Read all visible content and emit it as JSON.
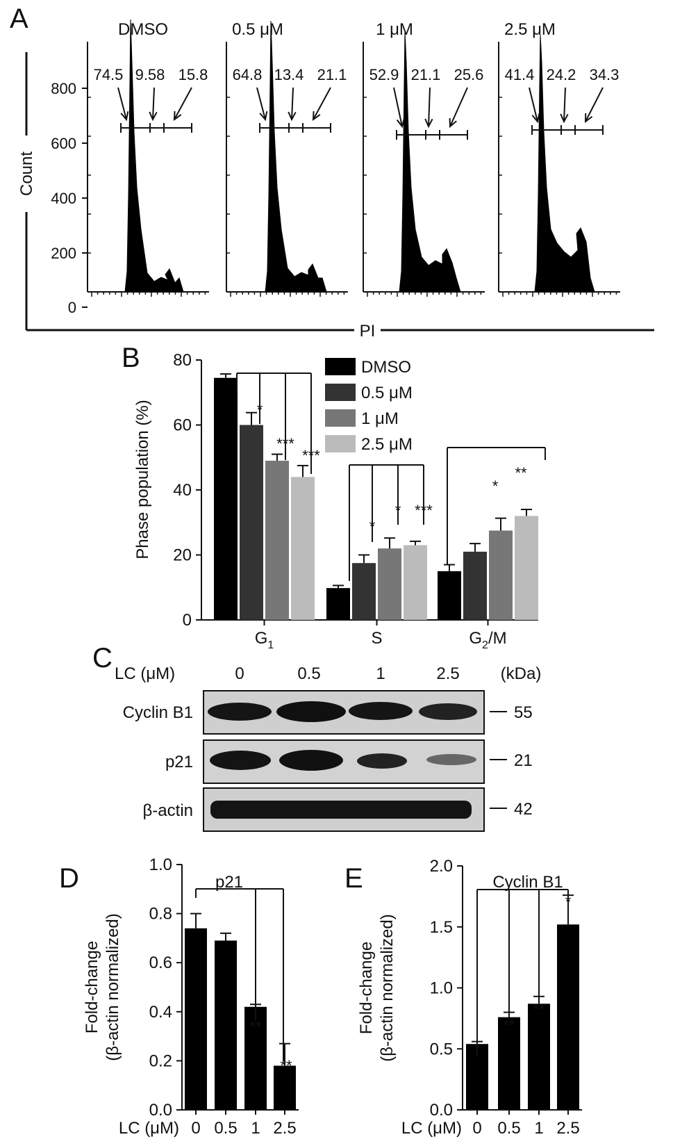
{
  "panel_labels": {
    "a": "A",
    "b": "B",
    "c": "C",
    "d": "D",
    "e": "E"
  },
  "panel_a": {
    "y_axis_label": "Count",
    "x_axis_label": "PI",
    "y_ticks": [
      "0",
      "200",
      "400",
      "600",
      "800"
    ],
    "histograms": [
      {
        "title": "DMSO",
        "g1": "74.5",
        "s": "9.58",
        "g2m": "15.8"
      },
      {
        "title": "0.5 μM",
        "g1": "64.8",
        "s": "13.4",
        "g2m": "21.1"
      },
      {
        "title": "1 μM",
        "g1": "52.9",
        "s": "21.1",
        "g2m": "25.6"
      },
      {
        "title": "2.5 μM",
        "g1": "41.4",
        "s": "24.2",
        "g2m": "34.3"
      }
    ]
  },
  "panel_b": {
    "y_axis_label": "Phase population (%)",
    "significance_marks": {
      "g1": [
        "*",
        "***",
        "***"
      ],
      "s": [
        "*",
        "*",
        "***"
      ],
      "g2m": [
        "*",
        "**"
      ]
    }
  },
  "panel_c": {
    "header_label": "LC (μM)",
    "concentrations": [
      "0",
      "0.5",
      "1",
      "2.5"
    ],
    "kda_label": "(kDa)",
    "rows": [
      {
        "label": "Cyclin B1",
        "kda": "55"
      },
      {
        "label": "p21",
        "kda": "21"
      },
      {
        "label": "β-actin",
        "kda": "42"
      }
    ]
  },
  "panel_d": {
    "marks": [
      "**",
      "**"
    ]
  },
  "panel_e": {
    "marks": [
      "**",
      "**",
      "*"
    ]
  },
  "chart_data": [
    {
      "type": "bar",
      "categories": [
        "G1",
        "S",
        "G2/M"
      ],
      "series": [
        {
          "name": "DMSO",
          "values": [
            74.5,
            9.8,
            15.0
          ],
          "errors": [
            1.2,
            0.8,
            2.0
          ],
          "color": "#000000"
        },
        {
          "name": "0.5 μM",
          "values": [
            60.0,
            17.5,
            21.0
          ],
          "errors": [
            3.8,
            2.5,
            2.5
          ],
          "color": "#333333"
        },
        {
          "name": "1 μM",
          "values": [
            49.0,
            22.0,
            27.5
          ],
          "errors": [
            2.0,
            3.2,
            3.8
          ],
          "color": "#777777"
        },
        {
          "name": "2.5 μM",
          "values": [
            44.0,
            23.0,
            32.0
          ],
          "errors": [
            3.5,
            1.2,
            2.0
          ],
          "color": "#bbbbbb"
        }
      ],
      "ylabel": "Phase population (%)",
      "ylim": [
        0,
        80
      ],
      "yticks": [
        "0",
        "20",
        "40",
        "60",
        "80"
      ],
      "legend": "top-right"
    },
    {
      "type": "bar",
      "title": "p21",
      "categories": [
        "0",
        "0.5",
        "1",
        "2.5"
      ],
      "values": [
        0.74,
        0.69,
        0.42,
        0.18
      ],
      "errors": [
        0.06,
        0.03,
        0.01,
        0.09
      ],
      "xlabel": "LC (μM)",
      "ylabel": "Fold-change",
      "ylabel2": "(β-actin normalized)",
      "ylim": [
        0,
        1.0
      ],
      "yticks": [
        "0.0",
        "0.2",
        "0.4",
        "0.6",
        "0.8",
        "1.0"
      ]
    },
    {
      "type": "bar",
      "title": "Cyclin B1",
      "categories": [
        "0",
        "0.5",
        "1",
        "2.5"
      ],
      "values": [
        0.54,
        0.76,
        0.87,
        1.52
      ],
      "errors": [
        0.02,
        0.04,
        0.06,
        0.24
      ],
      "xlabel": "LC (μM)",
      "ylabel": "Fold-change",
      "ylabel2": "(β-actin normalized)",
      "ylim": [
        0,
        2.0
      ],
      "yticks": [
        "0.0",
        "0.5",
        "1.0",
        "1.5",
        "2.0"
      ]
    }
  ]
}
